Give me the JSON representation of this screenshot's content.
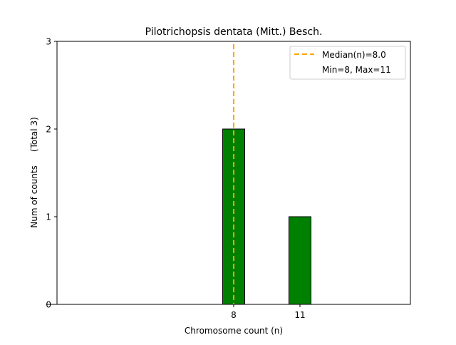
{
  "chart_data": {
    "type": "bar",
    "title": "Pilotrichopsis dentata (Mitt.) Besch.",
    "xlabel": "Chromosome count (n)",
    "ylabel": "Num of counts     (Total 3)",
    "x": [
      8,
      11
    ],
    "values": [
      2,
      1
    ],
    "bar_color": "#008000",
    "bar_edge_color": "#000000",
    "xlim": [
      0,
      16
    ],
    "ylim": [
      0,
      3
    ],
    "xticks": [
      8,
      11
    ],
    "xtick_labels": [
      "8",
      "11"
    ],
    "yticks": [
      0,
      1,
      2,
      3
    ],
    "ytick_labels": [
      "0",
      "1",
      "2",
      "3"
    ],
    "zero_baseline_range": [
      0,
      14
    ],
    "median": 8.0,
    "median_color": "#FFA500",
    "legend": {
      "placement": "top-right",
      "entries": [
        "Median(n)=8.0",
        "Min=8, Max=11"
      ]
    },
    "grid": false
  }
}
